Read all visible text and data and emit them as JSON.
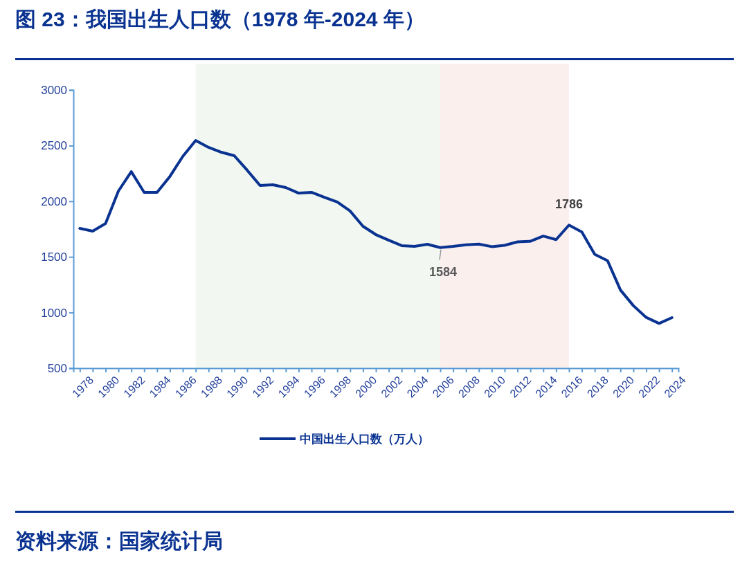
{
  "chart_data": {
    "type": "line",
    "title": "图 23：我国出生人口数（1978 年-2024 年）",
    "x": [
      1978,
      1979,
      1980,
      1981,
      1982,
      1983,
      1984,
      1985,
      1986,
      1987,
      1988,
      1989,
      1990,
      1991,
      1992,
      1993,
      1994,
      1995,
      1996,
      1997,
      1998,
      1999,
      2000,
      2001,
      2002,
      2003,
      2004,
      2005,
      2006,
      2007,
      2008,
      2009,
      2010,
      2011,
      2012,
      2013,
      2014,
      2015,
      2016,
      2017,
      2018,
      2019,
      2020,
      2021,
      2022,
      2023,
      2024
    ],
    "series": [
      {
        "name": "中国出生人口数（万人）",
        "color": "#0a3391",
        "values": [
          1756,
          1731,
          1800,
          2092,
          2266,
          2080,
          2080,
          2223,
          2403,
          2546,
          2484,
          2440,
          2409,
          2279,
          2142,
          2148,
          2123,
          2073,
          2080,
          2036,
          1993,
          1912,
          1775,
          1700,
          1650,
          1601,
          1595,
          1613,
          1584,
          1594,
          1608,
          1615,
          1592,
          1604,
          1635,
          1640,
          1687,
          1655,
          1786,
          1723,
          1523,
          1465,
          1202,
          1062,
          956,
          902,
          954
        ]
      }
    ],
    "xlim": [
      1977.5,
      2024.5
    ],
    "xticks": [
      1978,
      {
        "value": 1979,
        "label": null
      },
      1980,
      {
        "value": 1981,
        "label": null
      },
      1982,
      {
        "value": 1983,
        "label": null
      },
      1984,
      {
        "value": 1985,
        "label": null
      },
      1986,
      {
        "value": 1987,
        "label": null
      },
      1988,
      {
        "value": 1989,
        "label": null
      },
      1990,
      {
        "value": 1991,
        "label": null
      },
      1992,
      {
        "value": 1993,
        "label": null
      },
      1994,
      {
        "value": 1995,
        "label": null
      },
      1996,
      {
        "value": 1997,
        "label": null
      },
      1998,
      {
        "value": 1999,
        "label": null
      },
      2000,
      {
        "value": 2001,
        "label": null
      },
      2002,
      {
        "value": 2003,
        "label": null
      },
      2004,
      {
        "value": 2005,
        "label": null
      },
      2006,
      {
        "value": 2007,
        "label": null
      },
      2008,
      {
        "value": 2009,
        "label": null
      },
      2010,
      {
        "value": 2011,
        "label": null
      },
      2012,
      {
        "value": 2013,
        "label": null
      },
      2014,
      {
        "value": 2015,
        "label": null
      },
      2016,
      {
        "value": 2017,
        "label": null
      },
      2018,
      {
        "value": 2019,
        "label": null
      },
      2020,
      {
        "value": 2021,
        "label": null
      },
      2022,
      {
        "value": 2023,
        "label": null
      },
      2024
    ],
    "ylim": [
      500,
      3000
    ],
    "yticks": [
      500,
      1000,
      1500,
      2000,
      2500,
      3000
    ],
    "bands": [
      {
        "axis": "x",
        "from": 1987,
        "to": 2006,
        "color": "#f2f8f1"
      },
      {
        "axis": "x",
        "from": 2006,
        "to": 2016,
        "color": "#fbefee"
      }
    ],
    "annotations": [
      {
        "text": "1584",
        "x": 2006,
        "y": 1584
      },
      {
        "text": "1786",
        "x": 2016,
        "y": 1786
      },
      "资料来源：国家统计局"
    ],
    "grid": false,
    "legend": "bottom",
    "marker": "none",
    "line_style": "solid"
  }
}
